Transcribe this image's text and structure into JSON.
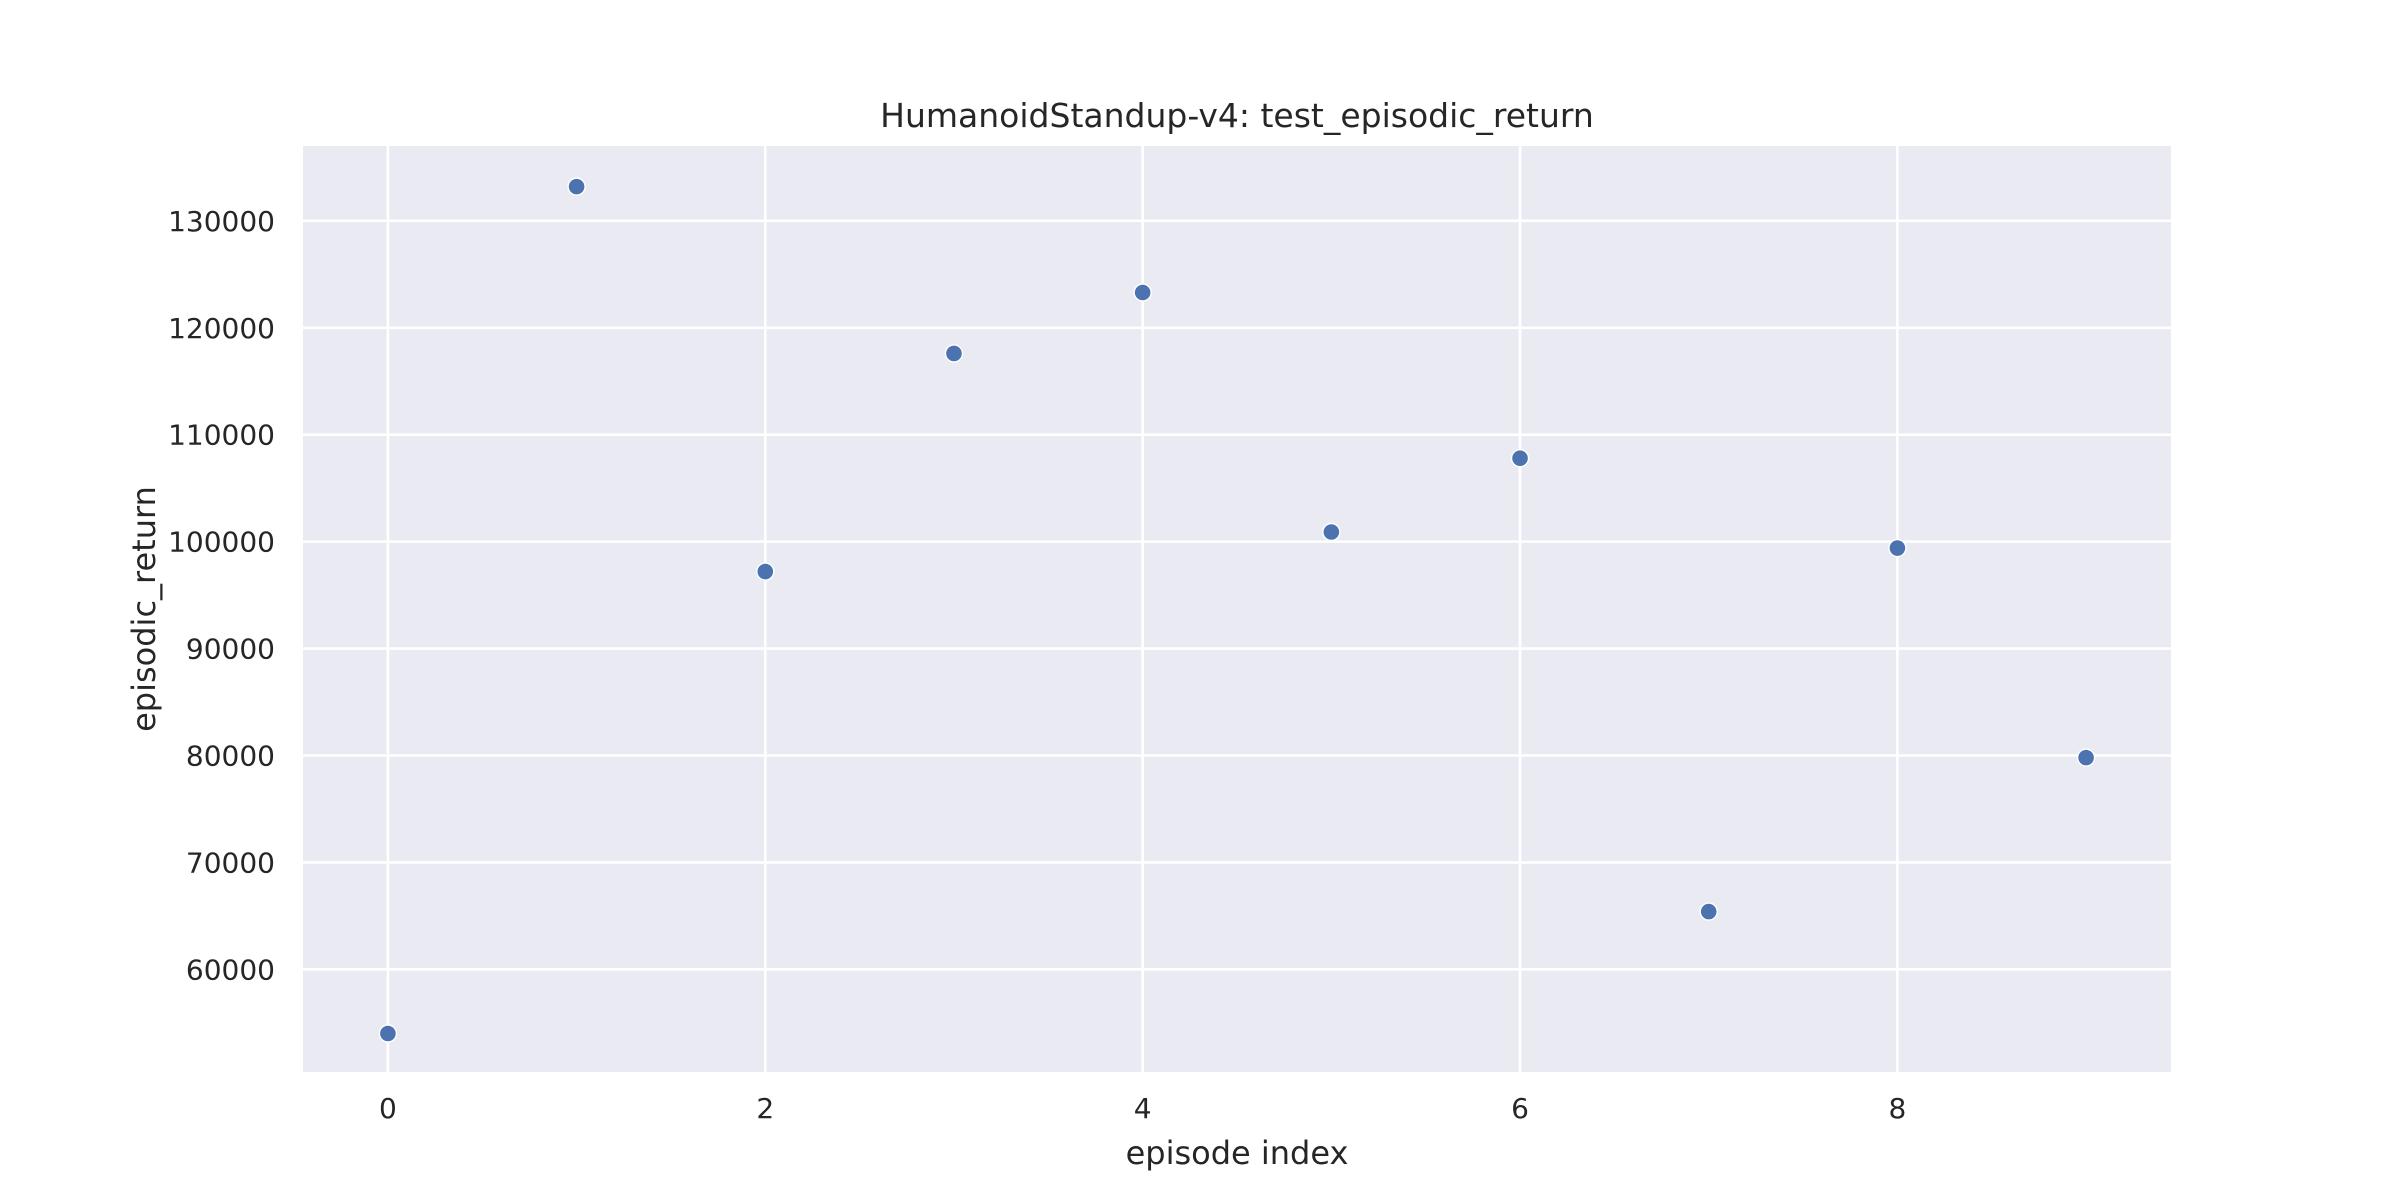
{
  "chart_data": {
    "type": "scatter",
    "title": "HumanoidStandup-v4: test_episodic_return",
    "xlabel": "episode index",
    "ylabel": "episodic_return",
    "xlim": [
      -0.45,
      9.45
    ],
    "ylim": [
      50400,
      137000
    ],
    "xticks": [
      0,
      2,
      4,
      6,
      8
    ],
    "yticks": [
      60000,
      70000,
      80000,
      90000,
      100000,
      110000,
      120000,
      130000
    ],
    "grid": true,
    "series": [
      {
        "x": [
          0,
          1,
          2,
          3,
          4,
          5,
          6,
          7,
          8,
          9
        ],
        "y": [
          54000,
          133200,
          97200,
          117600,
          123300,
          100900,
          107800,
          65400,
          99400,
          79800
        ]
      }
    ],
    "colors": {
      "point": "#4c72b0",
      "plot_background": "#eaeaf2",
      "grid": "#ffffff",
      "text": "#262626"
    }
  }
}
